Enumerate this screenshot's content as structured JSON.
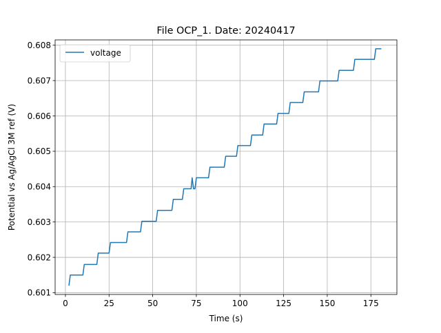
{
  "chart_data": {
    "type": "line",
    "title": "File OCP_1. Date: 20240417",
    "xlabel": "Time (s)",
    "ylabel": "Potential vs Ag/AgCl 3M ref (V)",
    "xlim": [
      -5.9,
      189.9
    ],
    "ylim": [
      0.60095,
      0.60815
    ],
    "xticks": [
      0,
      25,
      50,
      75,
      100,
      125,
      150,
      175
    ],
    "xtick_labels": [
      "0",
      "25",
      "50",
      "75",
      "100",
      "125",
      "150",
      "175"
    ],
    "yticks": [
      0.601,
      0.602,
      0.603,
      0.604,
      0.605,
      0.606,
      0.607,
      0.608
    ],
    "ytick_labels": [
      "0.601",
      "0.602",
      "0.603",
      "0.604",
      "0.605",
      "0.606",
      "0.607",
      "0.608"
    ],
    "grid": true,
    "legend_position": "top-left",
    "series": [
      {
        "name": "voltage",
        "color": "#1f77b4",
        "points": [
          [
            2,
            0.6012
          ],
          [
            2.8,
            0.6015
          ],
          [
            10,
            0.6015
          ],
          [
            10.8,
            0.6018
          ],
          [
            18,
            0.6018
          ],
          [
            18.8,
            0.60212
          ],
          [
            25,
            0.60212
          ],
          [
            25.8,
            0.60242
          ],
          [
            35,
            0.60242
          ],
          [
            35.8,
            0.60272
          ],
          [
            43,
            0.60272
          ],
          [
            43.8,
            0.60302
          ],
          [
            52,
            0.60302
          ],
          [
            52.8,
            0.60333
          ],
          [
            61,
            0.60333
          ],
          [
            61.8,
            0.60364
          ],
          [
            67,
            0.60364
          ],
          [
            67.8,
            0.60394
          ],
          [
            72,
            0.60394
          ],
          [
            72.6,
            0.60425
          ],
          [
            73.4,
            0.60394
          ],
          [
            74.2,
            0.60394
          ],
          [
            75,
            0.60425
          ],
          [
            82,
            0.60425
          ],
          [
            82.8,
            0.60455
          ],
          [
            91,
            0.60455
          ],
          [
            91.8,
            0.60486
          ],
          [
            98,
            0.60486
          ],
          [
            98.8,
            0.60516
          ],
          [
            106,
            0.60516
          ],
          [
            106.8,
            0.60546
          ],
          [
            113,
            0.60546
          ],
          [
            113.8,
            0.60577
          ],
          [
            121,
            0.60577
          ],
          [
            121.8,
            0.60607
          ],
          [
            128,
            0.60607
          ],
          [
            128.8,
            0.60638
          ],
          [
            136,
            0.60638
          ],
          [
            136.8,
            0.60668
          ],
          [
            145,
            0.60668
          ],
          [
            145.8,
            0.60699
          ],
          [
            156,
            0.60699
          ],
          [
            156.8,
            0.60729
          ],
          [
            165,
            0.60729
          ],
          [
            165.8,
            0.6076
          ],
          [
            177,
            0.6076
          ],
          [
            177.8,
            0.6079
          ],
          [
            181,
            0.6079
          ]
        ]
      }
    ]
  }
}
